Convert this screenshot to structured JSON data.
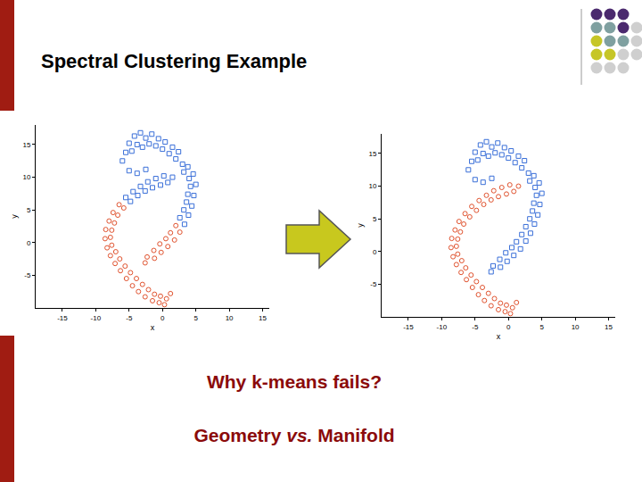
{
  "slide": {
    "title": "Spectral Clustering Example",
    "lines": [
      [
        {
          "text": "Why k-means fails?"
        }
      ],
      [
        {
          "text": "Geometry "
        },
        {
          "text": "vs.",
          "italic": true
        },
        {
          "text": " Manifold"
        }
      ]
    ]
  },
  "chart_data": [
    {
      "type": "scatter",
      "x_label": "x",
      "y_label": "y",
      "xlim": [
        -19,
        16
      ],
      "ylim": [
        -10,
        18
      ],
      "xticks": [
        -15,
        -10,
        -5,
        0,
        5,
        10,
        15
      ],
      "yticks": [
        -5,
        0,
        5,
        10,
        15
      ],
      "grid": false,
      "series": [
        {
          "color": "#e0522e",
          "marker": "circle",
          "x": [
            -5.8,
            -6.5,
            -6.7,
            -7.4,
            -7.2,
            -8,
            -7.6,
            -8.5,
            -7.8,
            -8.6,
            -7.6,
            -8.3,
            -7,
            -7.8,
            -6.4,
            -7.1,
            -5.6,
            -6.3,
            -4.8,
            -5.4,
            -3.9,
            -4.5,
            -3,
            -3.6,
            -2.1,
            -2.6,
            -1.2,
            -1.5,
            -0.3,
            -0.5,
            0.6,
            0.3,
            1.2,
            2,
            2.6,
            1.2,
            1.8,
            0.5,
            0.8,
            -0.4,
            -0.2,
            -1.3,
            -1.2,
            -2.3,
            -2.6
          ],
          "y": [
            5.3,
            5.8,
            4.2,
            4.6,
            3,
            3.3,
            1.9,
            2,
            0.8,
            0.6,
            -0.4,
            -0.8,
            -1.4,
            -2,
            -2.5,
            -3.2,
            -3.6,
            -4.3,
            -4.6,
            -5.5,
            -5.5,
            -6.6,
            -6.4,
            -7.5,
            -7.2,
            -8.3,
            -7.9,
            -8.9,
            -8.2,
            -9.2,
            -8.6,
            -9.5,
            -7.8,
            2.6,
            1.6,
            1.5,
            0.4,
            0.6,
            -0.6,
            -0.2,
            -1.5,
            -1.2,
            -2.4,
            -2.2,
            -3.1
          ]
        },
        {
          "color": "#3a6fd8",
          "marker": "square",
          "x": [
            -6,
            -5.5,
            -5,
            -4.6,
            -4.2,
            -3.8,
            -3.3,
            -3,
            -2.5,
            -2,
            -1.6,
            -1,
            -0.6,
            0,
            0.4,
            1,
            1.5,
            2,
            2.4,
            3,
            3.2,
            3.8,
            4,
            4.6,
            4.2,
            5,
            3.8,
            4.7,
            3.6,
            4.4,
            3.2,
            3.9,
            2.6,
            3.3,
            -5,
            -3.8,
            -2.5,
            1.5,
            0.8,
            0.2,
            -0.3,
            -1,
            -1.5,
            -2.2,
            -2.6,
            -3.3,
            -3.7,
            -4.4,
            -4.8,
            -5.5
          ],
          "y": [
            12.5,
            13.8,
            15.2,
            14,
            16.3,
            15,
            16.8,
            14.6,
            16,
            15.1,
            16.6,
            14.8,
            15.9,
            14.3,
            15.4,
            13.6,
            14.6,
            12.8,
            13.9,
            12,
            10.8,
            11.6,
            9.8,
            10.5,
            8.6,
            8.9,
            7.4,
            7.2,
            6.2,
            5.6,
            5,
            4.2,
            3.8,
            2.8,
            11,
            10.6,
            11.2,
            10,
            9.2,
            10.2,
            8.8,
            9.8,
            8.4,
            9.3,
            7.9,
            8.6,
            7.2,
            7.8,
            6.3,
            6.9
          ]
        }
      ]
    },
    {
      "type": "scatter",
      "x_label": "x",
      "y_label": "y",
      "xlim": [
        -19,
        16
      ],
      "ylim": [
        -10,
        18
      ],
      "xticks": [
        -15,
        -10,
        -5,
        0,
        5,
        10,
        15
      ],
      "yticks": [
        -5,
        0,
        5,
        10,
        15
      ],
      "grid": false,
      "series": [
        {
          "color": "#e0522e",
          "marker": "circle",
          "x": [
            1.5,
            0.8,
            0.2,
            -0.3,
            -1,
            -1.5,
            -2.2,
            -2.6,
            -3.3,
            -3.7,
            -4.4,
            -4.8,
            -5.5,
            -5.8,
            -6.5,
            -6.7,
            -7.4,
            -7.2,
            -8,
            -7.6,
            -8.5,
            -7.8,
            -8.6,
            -7.6,
            -8.3,
            -7,
            -7.8,
            -6.4,
            -7.1,
            -5.6,
            -6.3,
            -4.8,
            -5.4,
            -3.9,
            -4.5,
            -3,
            -3.6,
            -2.1,
            -2.6,
            -1.2,
            -1.5,
            -0.3,
            -0.5,
            0.6,
            0.3,
            1.2
          ],
          "y": [
            10,
            9.2,
            10.2,
            8.8,
            9.8,
            8.4,
            9.3,
            7.9,
            8.6,
            7.2,
            7.8,
            6.3,
            6.9,
            5.3,
            5.8,
            4.2,
            4.6,
            3,
            3.3,
            1.9,
            2,
            0.8,
            0.6,
            -0.4,
            -0.8,
            -1.4,
            -2,
            -2.5,
            -3.2,
            -3.6,
            -4.3,
            -4.6,
            -5.5,
            -5.5,
            -6.6,
            -6.4,
            -7.5,
            -7.2,
            -8.3,
            -7.9,
            -8.9,
            -8.2,
            -9.2,
            -8.6,
            -9.5,
            -7.8
          ]
        },
        {
          "color": "#3a6fd8",
          "marker": "square",
          "x": [
            -6,
            -5.5,
            -5,
            -4.6,
            -4.2,
            -3.8,
            -3.3,
            -3,
            -2.5,
            -2,
            -1.6,
            -1,
            -0.6,
            0,
            0.4,
            1,
            1.5,
            2,
            2.4,
            3,
            3.2,
            3.8,
            4,
            4.6,
            4.2,
            5,
            3.8,
            4.7,
            3.6,
            4.4,
            3.2,
            3.9,
            2.6,
            3.3,
            -5,
            -3.8,
            -2.5,
            2,
            2.6,
            1.2,
            1.8,
            0.5,
            0.8,
            -0.4,
            -0.2,
            -1.3,
            -1.2,
            -2.3,
            -2.6
          ],
          "y": [
            12.5,
            13.8,
            15.2,
            14,
            16.3,
            15,
            16.8,
            14.6,
            16,
            15.1,
            16.6,
            14.8,
            15.9,
            14.3,
            15.4,
            13.6,
            14.6,
            12.8,
            13.9,
            12,
            10.8,
            11.6,
            9.8,
            10.5,
            8.6,
            8.9,
            7.4,
            7.2,
            6.2,
            5.6,
            5,
            4.2,
            3.8,
            2.8,
            11,
            10.6,
            11.2,
            2.6,
            1.6,
            1.5,
            0.4,
            0.6,
            -0.6,
            -0.2,
            -1.5,
            -1.2,
            -2.4,
            -2.2,
            -3.1
          ]
        }
      ]
    }
  ]
}
